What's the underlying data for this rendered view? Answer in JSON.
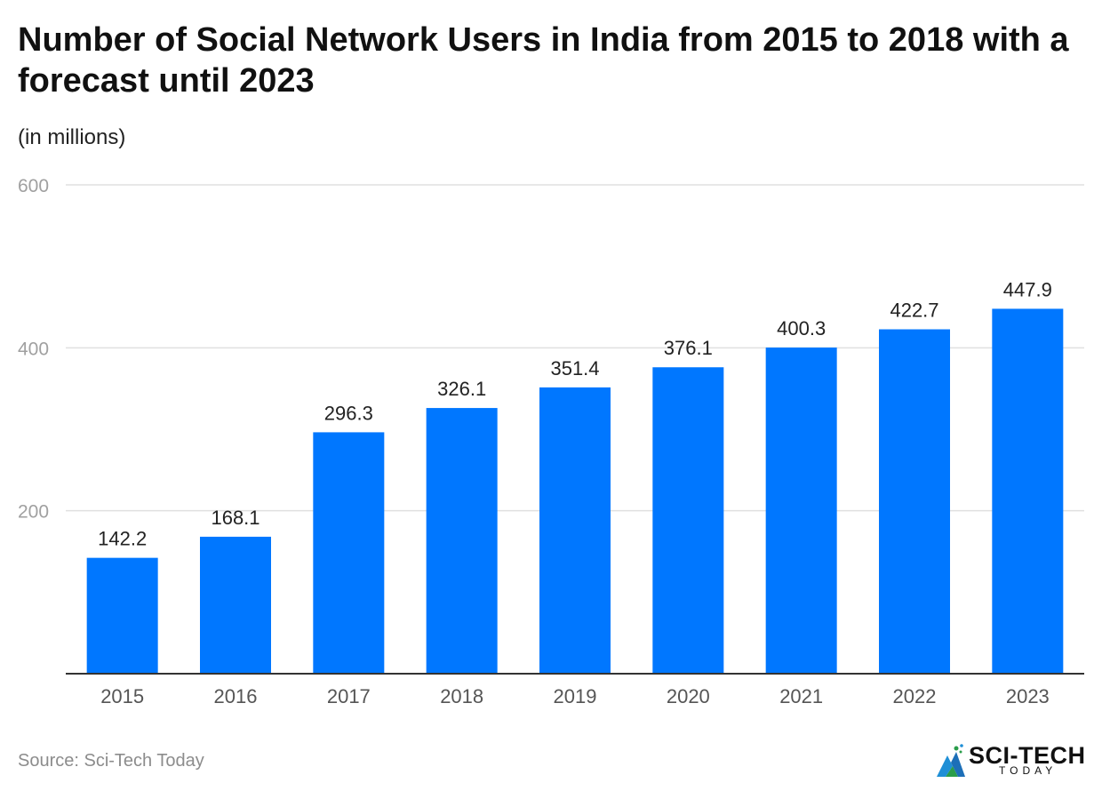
{
  "chart_data": {
    "type": "bar",
    "title": "Number of Social Network Users in India from 2015 to 2018 with a forecast until 2023",
    "subtitle": "(in millions)",
    "xlabel": "",
    "ylabel": "",
    "categories": [
      "2015",
      "2016",
      "2017",
      "2018",
      "2019",
      "2020",
      "2021",
      "2022",
      "2023"
    ],
    "values": [
      142.2,
      168.1,
      296.3,
      326.1,
      351.4,
      376.1,
      400.3,
      422.7,
      447.9
    ],
    "value_labels": [
      "142.2",
      "168.1",
      "296.3",
      "326.1",
      "351.4",
      "376.1",
      "400.3",
      "422.7",
      "447.9"
    ],
    "ylim": [
      0,
      600
    ],
    "yticks": [
      200,
      400,
      600
    ],
    "ytick_labels": [
      "200",
      "400",
      "600"
    ],
    "grid": true,
    "legend": "none",
    "bar_color": "#0077ff",
    "grid_color": "#e0e0e0",
    "axis_color": "#333333",
    "tick_label_color": "#a0a0a0"
  },
  "footer": {
    "source": "Source: Sci-Tech Today",
    "logo_text": "SCI-TECH",
    "logo_subtext": "TODAY",
    "logo_icon": "sci-tech-today-logo-icon"
  }
}
